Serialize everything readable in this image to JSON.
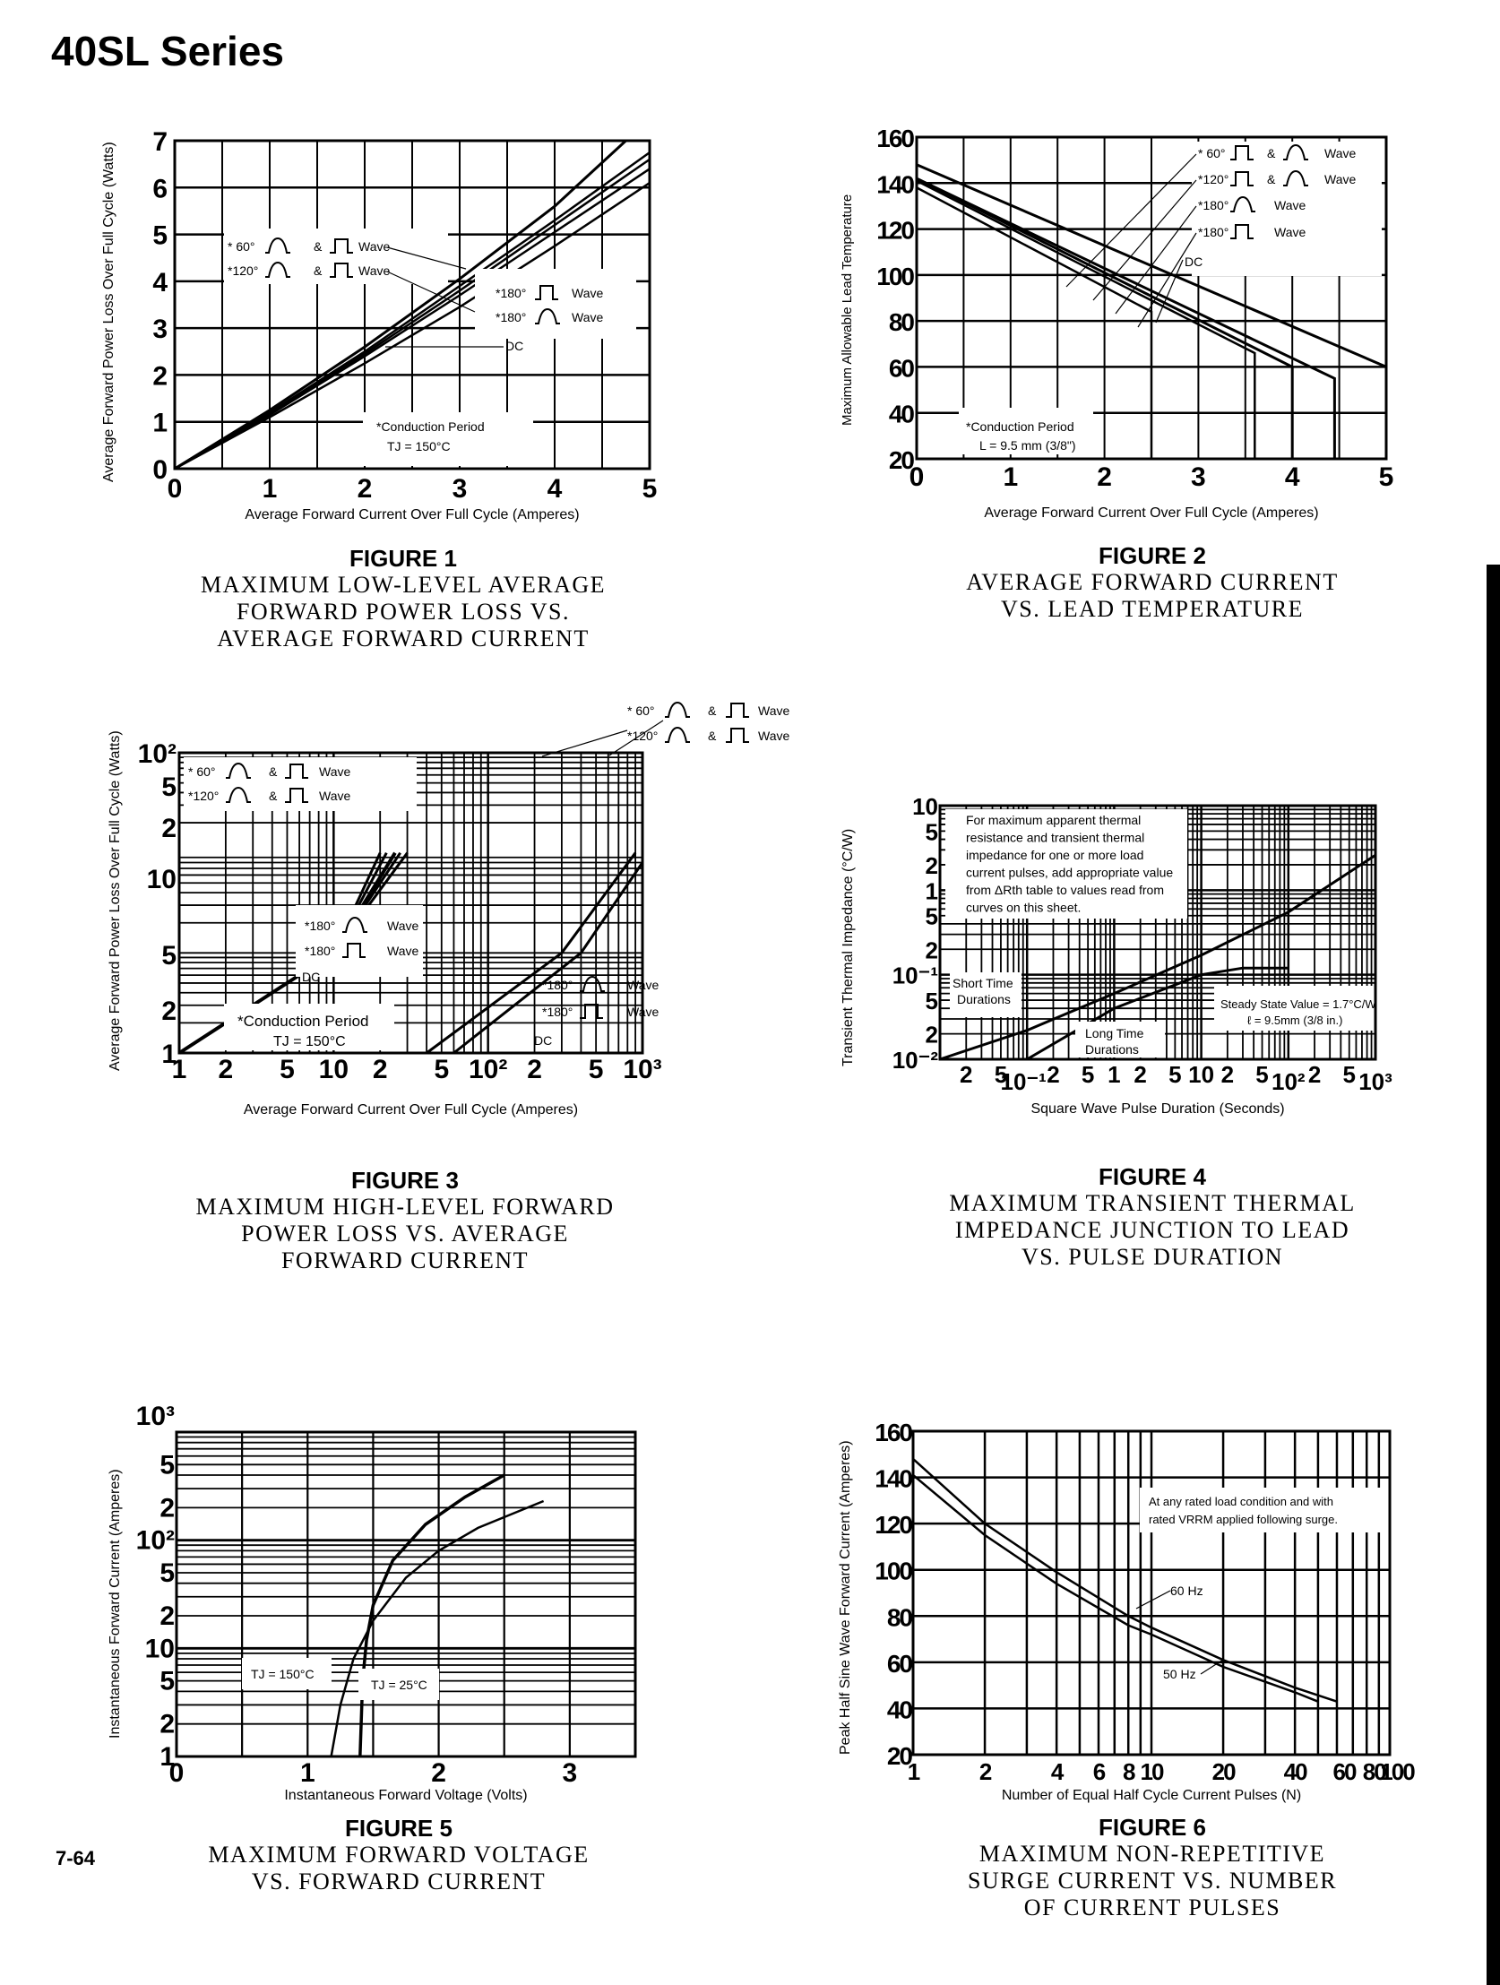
{
  "page": {
    "title": "40SL Series",
    "page_number": "7-64"
  },
  "chart_data": [
    {
      "id": "fig1",
      "type": "line",
      "figure_label": "FIGURE 1",
      "title": "MAXIMUM LOW-LEVEL AVERAGE FORWARD POWER LOSS VS. AVERAGE FORWARD CURRENT",
      "title_lines": [
        "MAXIMUM LOW-LEVEL AVERAGE",
        "FORWARD POWER LOSS VS.",
        "AVERAGE FORWARD CURRENT"
      ],
      "xlabel": "Average Forward Current Over Full Cycle (Amperes)",
      "ylabel": "Average Forward Power Loss Over Full Cycle (Watts)",
      "xscale": "linear",
      "yscale": "linear",
      "xlim": [
        0,
        5
      ],
      "ylim": [
        0,
        7
      ],
      "x_ticks": [
        "0",
        "1",
        "2",
        "3",
        "4",
        "5"
      ],
      "y_ticks": [
        "0",
        "1",
        "2",
        "3",
        "4",
        "5",
        "6",
        "7"
      ],
      "grid": true,
      "series": [
        {
          "name": "60° sine & square wave",
          "x": [
            0,
            1,
            2,
            3,
            4,
            4.75
          ],
          "y": [
            0,
            1.25,
            2.6,
            4.05,
            5.6,
            7.0
          ]
        },
        {
          "name": "120° sine & square wave",
          "x": [
            0,
            1,
            2,
            3,
            4,
            5
          ],
          "y": [
            0,
            1.2,
            2.5,
            3.9,
            5.3,
            6.75
          ]
        },
        {
          "name": "180° square wave",
          "x": [
            0,
            1,
            2,
            3,
            4,
            5
          ],
          "y": [
            0,
            1.18,
            2.45,
            3.8,
            5.2,
            6.6
          ]
        },
        {
          "name": "180° sine wave",
          "x": [
            0,
            1,
            2,
            3,
            4,
            5
          ],
          "y": [
            0,
            1.15,
            2.4,
            3.7,
            5.05,
            6.4
          ]
        },
        {
          "name": "DC",
          "x": [
            0,
            1,
            2,
            3,
            4,
            5
          ],
          "y": [
            0,
            1.1,
            2.25,
            3.45,
            4.75,
            6.1
          ]
        }
      ],
      "annotations": [
        "* 60° ⊓ & ⊓ Wave",
        "*120° ⊓ & ⊓ Wave",
        "*180° ⊓ Wave",
        "*180° ⊓ Wave",
        "DC",
        "*Conduction Period",
        "TJ = 150°C"
      ],
      "legend": {
        "l1": "* 60°",
        "l1b": "&",
        "l1c": "Wave",
        "l2": "*120°",
        "l2b": "&",
        "l2c": "Wave",
        "l3": "*180°",
        "l3c": "Wave",
        "l4": "*180°",
        "l4c": "Wave",
        "dc": "DC",
        "note1": "*Conduction Period",
        "note2": "TJ = 150°C"
      }
    },
    {
      "id": "fig2",
      "type": "line",
      "figure_label": "FIGURE 2",
      "title": "AVERAGE FORWARD CURRENT VS. LEAD TEMPERATURE",
      "title_lines": [
        "AVERAGE FORWARD CURRENT",
        "VS. LEAD TEMPERATURE"
      ],
      "xlabel": "Average Forward Current Over Full Cycle (Amperes)",
      "ylabel": "Maximum Allowable Lead Temperature",
      "xscale": "linear",
      "yscale": "linear",
      "xlim": [
        0,
        5
      ],
      "ylim": [
        20,
        160
      ],
      "x_ticks": [
        "0",
        "1",
        "2",
        "3",
        "4",
        "5"
      ],
      "y_ticks": [
        "20",
        "40",
        "60",
        "80",
        "100",
        "120",
        "140",
        "160"
      ],
      "grid": true,
      "series": [
        {
          "name": "60° square & sine wave",
          "x": [
            0,
            2.5,
            2.5
          ],
          "y": [
            138,
            84,
            20
          ]
        },
        {
          "name": "120° square & sine wave",
          "x": [
            0,
            3.6,
            3.6
          ],
          "y": [
            141,
            66,
            20
          ]
        },
        {
          "name": "180° sine wave",
          "x": [
            0,
            4.0,
            4.0
          ],
          "y": [
            142,
            60,
            20
          ]
        },
        {
          "name": "180° square wave",
          "x": [
            0,
            4.45,
            4.45
          ],
          "y": [
            142,
            55,
            20
          ]
        },
        {
          "name": "DC",
          "x": [
            0,
            5
          ],
          "y": [
            148,
            60
          ]
        }
      ],
      "legend": {
        "l1": "* 60°",
        "l1b": "&",
        "l1c": "Wave",
        "l2": "*120°",
        "l2b": "&",
        "l2c": "Wave",
        "l3": "*180°",
        "l3c": "Wave",
        "l4": "*180°",
        "l4c": "Wave",
        "dc": "DC",
        "note1": "*Conduction Period",
        "note2": "L = 9.5 mm (3/8\")"
      }
    },
    {
      "id": "fig3",
      "type": "line",
      "figure_label": "FIGURE 3",
      "title": "MAXIMUM HIGH-LEVEL FORWARD POWER LOSS VS. AVERAGE FORWARD CURRENT",
      "title_lines": [
        "MAXIMUM HIGH-LEVEL FORWARD",
        "POWER LOSS VS. AVERAGE",
        "FORWARD CURRENT"
      ],
      "xlabel": "Average Forward Current Over Full Cycle (Amperes)",
      "ylabel": "Average Forward Power Loss Over Full Cycle (Watts)",
      "xscale": "log",
      "yscale": "log",
      "xlim": [
        1,
        1000
      ],
      "ylim": [
        1,
        1000
      ],
      "x_ticks": [
        "1",
        "2",
        "5",
        "10",
        "2",
        "5",
        "10²",
        "2",
        "5",
        "10³"
      ],
      "y_ticks": [
        "1",
        "2",
        "5",
        "10",
        "2",
        "5",
        "10²"
      ],
      "y_tick_note": "left axis shows decade 1–10 then 10–10² (compressed double-cycle scale)",
      "grid": true,
      "series": [
        {
          "name": "60° sine & square wave (low range)",
          "x": [
            1,
            10,
            20
          ],
          "y": [
            1,
            10,
            100
          ]
        },
        {
          "name": "120° sine & square wave (low range)",
          "x": [
            1,
            10,
            22
          ],
          "y": [
            1,
            10,
            100
          ]
        },
        {
          "name": "180° sine wave (low range)",
          "x": [
            1,
            10,
            25
          ],
          "y": [
            1,
            10,
            100
          ]
        },
        {
          "name": "180° square wave (low range)",
          "x": [
            1,
            10,
            27
          ],
          "y": [
            1,
            10,
            100
          ]
        },
        {
          "name": "DC (low range)",
          "x": [
            1,
            10,
            30
          ],
          "y": [
            1,
            10,
            100
          ]
        },
        {
          "name": "60° sine & square wave (high range)",
          "x": [
            40,
            300,
            900
          ],
          "y": [
            1,
            10,
            100
          ]
        },
        {
          "name": "DC (high range)",
          "x": [
            60,
            400,
            1000
          ],
          "y": [
            1,
            10,
            80
          ]
        }
      ],
      "legend": {
        "top1": "* 60°",
        "top1b": "&",
        "top1c": "Wave",
        "top2": "*120°",
        "top2b": "&",
        "top2c": "Wave",
        "l1": "* 60°",
        "l1b": "&",
        "l1c": "Wave",
        "l2": "*120°",
        "l2b": "&",
        "l2c": "Wave",
        "m1": "*180°",
        "m1c": "Wave",
        "m2": "*180°",
        "m2c": "Wave",
        "mdc": "DC",
        "r1": "*180°",
        "r1c": "Wave",
        "r2": "*180°",
        "r2c": "Wave",
        "rdc": "DC",
        "note1": "*Conduction Period",
        "note2": "TJ = 150°C"
      }
    },
    {
      "id": "fig4",
      "type": "line",
      "figure_label": "FIGURE 4",
      "title": "MAXIMUM TRANSIENT THERMAL IMPEDANCE JUNCTION TO LEAD VS. PULSE DURATION",
      "title_lines": [
        "MAXIMUM TRANSIENT THERMAL",
        "IMPEDANCE JUNCTION TO LEAD",
        "VS. PULSE DURATION"
      ],
      "xlabel": "Square Wave Pulse Duration (Seconds)",
      "ylabel": "Transient Thermal Impedance (°C/W)",
      "xscale": "log",
      "yscale": "log",
      "xlim": [
        0.01,
        1000
      ],
      "ylim": [
        0.01,
        10
      ],
      "x_ticks": [
        "2",
        "5",
        "10⁻¹",
        "2",
        "5",
        "1",
        "2",
        "5",
        "10",
        "2",
        "5",
        "10²",
        "2",
        "5",
        "10³"
      ],
      "y_ticks": [
        "10⁻²",
        "2",
        "5",
        "10⁻¹",
        "2",
        "5",
        "1",
        "2",
        "5",
        "10"
      ],
      "grid": true,
      "series": [
        {
          "name": "Short Time Durations",
          "x": [
            0.01,
            0.1,
            1,
            10,
            100,
            1000
          ],
          "y": [
            0.01,
            0.022,
            0.06,
            0.17,
            0.55,
            2.6
          ]
        },
        {
          "name": "Long Time Durations",
          "x": [
            0.1,
            1,
            10,
            30,
            100
          ],
          "y": [
            0.01,
            0.04,
            0.1,
            0.12,
            0.12
          ]
        }
      ],
      "notes": {
        "box": [
          "For maximum apparent thermal",
          "resistance and transient thermal",
          "impedance for one or more load",
          "current pulses, add appropriate value",
          "from ΔRth table to values read from",
          "curves on this sheet."
        ],
        "short_1": "Short Time",
        "short_2": "Durations",
        "long_1": "Long Time",
        "long_2": "Durations",
        "steady_1": "Steady State Value = 1.7°C/W",
        "steady_2": "ℓ = 9.5mm (3/8 in.)"
      }
    },
    {
      "id": "fig5",
      "type": "line",
      "figure_label": "FIGURE 5",
      "title": "MAXIMUM FORWARD VOLTAGE VS. FORWARD CURRENT",
      "title_lines": [
        "MAXIMUM FORWARD VOLTAGE",
        "VS. FORWARD CURRENT"
      ],
      "xlabel": "Instantaneous Forward Voltage (Volts)",
      "ylabel": "Instantaneous Forward Current (Amperes)",
      "xscale": "linear",
      "yscale": "log",
      "xlim": [
        0,
        3.5
      ],
      "ylim": [
        1,
        1000
      ],
      "x_ticks": [
        "0",
        "1",
        "2",
        "3"
      ],
      "y_ticks": [
        "1",
        "2",
        "5",
        "10",
        "2",
        "5",
        "10²",
        "2",
        "5",
        "10³"
      ],
      "grid": true,
      "series": [
        {
          "name": "TJ = 150°C",
          "x": [
            1.18,
            1.25,
            1.35,
            1.5,
            1.75,
            2.0,
            2.3,
            2.8
          ],
          "y": [
            1,
            3,
            8,
            18,
            45,
            80,
            130,
            230
          ]
        },
        {
          "name": "TJ = 25°C",
          "x": [
            1.4,
            1.42,
            1.45,
            1.5,
            1.65,
            1.9,
            2.2,
            2.5
          ],
          "y": [
            1,
            5,
            12,
            25,
            65,
            140,
            250,
            400
          ]
        }
      ],
      "labels": {
        "t150": "TJ = 150°C",
        "t25": "TJ = 25°C"
      }
    },
    {
      "id": "fig6",
      "type": "line",
      "figure_label": "FIGURE 6",
      "title": "MAXIMUM NON-REPETITIVE SURGE CURRENT VS. NUMBER OF CURRENT PULSES",
      "title_lines": [
        "MAXIMUM NON-REPETITIVE",
        "SURGE CURRENT VS. NUMBER",
        "OF CURRENT PULSES"
      ],
      "xlabel": "Number of Equal Half Cycle Current Pulses (N)",
      "ylabel": "Peak Half Sine Wave Forward Current (Amperes)",
      "xscale": "log",
      "yscale": "linear",
      "xlim": [
        1,
        100
      ],
      "ylim": [
        20,
        160
      ],
      "x_ticks": [
        "1",
        "2",
        "4",
        "6",
        "8",
        "10",
        "20",
        "40",
        "60",
        "80",
        "100"
      ],
      "y_ticks": [
        "20",
        "40",
        "60",
        "80",
        "100",
        "120",
        "140",
        "160"
      ],
      "grid": true,
      "series": [
        {
          "name": "60 Hz",
          "x": [
            1,
            2,
            4,
            8,
            10,
            20,
            40,
            60
          ],
          "y": [
            148,
            120,
            99,
            80,
            75,
            61,
            49,
            43
          ]
        },
        {
          "name": "50 Hz",
          "x": [
            1,
            2,
            4,
            8,
            10,
            20,
            40,
            50
          ],
          "y": [
            141,
            115,
            94,
            76,
            72,
            58,
            47,
            43
          ]
        }
      ],
      "notes": {
        "box1": "At any rated load condition and with",
        "box2": "rated VRRM applied following surge.",
        "hz60": "60 Hz",
        "hz50": "50 Hz"
      }
    }
  ]
}
